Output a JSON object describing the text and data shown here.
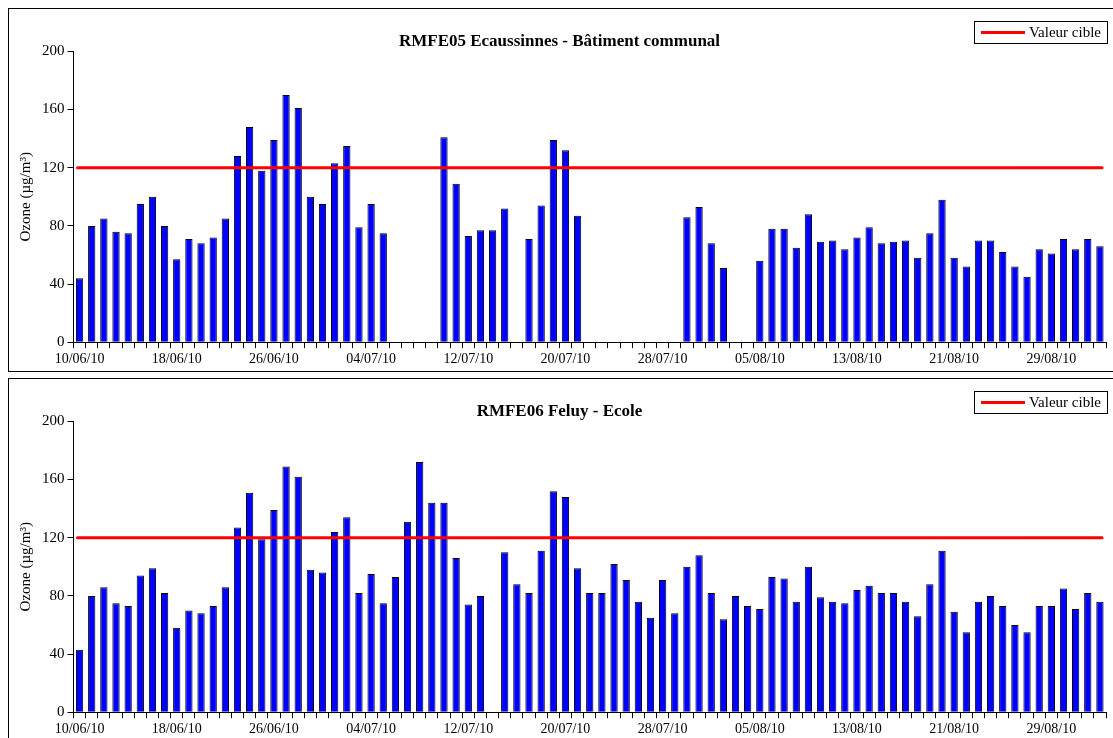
{
  "chart_data": [
    {
      "type": "bar",
      "title": "RMFE05 Ecaussinnes - Bâtiment communal",
      "ylabel": "Ozone (µg/m³)",
      "categories": [
        "10/06/10",
        null,
        null,
        null,
        null,
        null,
        null,
        null,
        "18/06/10",
        null,
        null,
        null,
        null,
        null,
        null,
        null,
        "26/06/10",
        null,
        null,
        null,
        null,
        null,
        null,
        null,
        "04/07/10",
        null,
        null,
        null,
        null,
        null,
        null,
        null,
        "12/07/10",
        null,
        null,
        null,
        null,
        null,
        null,
        null,
        "20/07/10",
        null,
        null,
        null,
        null,
        null,
        null,
        null,
        "28/07/10",
        null,
        null,
        null,
        null,
        null,
        null,
        null,
        "05/08/10",
        null,
        null,
        null,
        null,
        null,
        null,
        null,
        "13/08/10",
        null,
        null,
        null,
        null,
        null,
        null,
        null,
        "21/08/10",
        null,
        null,
        null,
        null,
        null,
        null,
        null,
        "29/08/10",
        null,
        null,
        null,
        null
      ],
      "series": [
        {
          "color": "#0000ff",
          "values": [
            44,
            80,
            85,
            76,
            75,
            95,
            100,
            80,
            57,
            71,
            68,
            72,
            85,
            128,
            148,
            118,
            139,
            170,
            161,
            100,
            95,
            123,
            135,
            79,
            95,
            75,
            null,
            null,
            null,
            null,
            141,
            109,
            73,
            77,
            77,
            92,
            null,
            71,
            94,
            139,
            132,
            87,
            null,
            null,
            null,
            null,
            null,
            null,
            null,
            null,
            86,
            93,
            68,
            51,
            null,
            null,
            56,
            78,
            78,
            65,
            88,
            69,
            70,
            64,
            72,
            79,
            68,
            69,
            70,
            58,
            75,
            98,
            58,
            52,
            70,
            70,
            62,
            52,
            45,
            64,
            61,
            71,
            64,
            71,
            66
          ]
        }
      ],
      "ylim": [
        0,
        200
      ],
      "yticks": [
        0,
        40,
        80,
        120,
        160,
        200
      ],
      "grid": false,
      "legend": "top right",
      "ref_lines": [
        {
          "axis": "y",
          "value": 120,
          "label": "Valeur cible",
          "color": "#ff0000"
        }
      ]
    },
    {
      "type": "bar",
      "title": "RMFE06 Feluy - Ecole",
      "ylabel": "Ozone (µg/m³)",
      "categories": [
        "10/06/10",
        null,
        null,
        null,
        null,
        null,
        null,
        null,
        "18/06/10",
        null,
        null,
        null,
        null,
        null,
        null,
        null,
        "26/06/10",
        null,
        null,
        null,
        null,
        null,
        null,
        null,
        "04/07/10",
        null,
        null,
        null,
        null,
        null,
        null,
        null,
        "12/07/10",
        null,
        null,
        null,
        null,
        null,
        null,
        null,
        "20/07/10",
        null,
        null,
        null,
        null,
        null,
        null,
        null,
        "28/07/10",
        null,
        null,
        null,
        null,
        null,
        null,
        null,
        "05/08/10",
        null,
        null,
        null,
        null,
        null,
        null,
        null,
        "13/08/10",
        null,
        null,
        null,
        null,
        null,
        null,
        null,
        "21/08/10",
        null,
        null,
        null,
        null,
        null,
        null,
        null,
        "29/08/10",
        null,
        null,
        null,
        null
      ],
      "series": [
        {
          "color": "#0000ff",
          "values": [
            43,
            80,
            86,
            75,
            73,
            94,
            99,
            82,
            58,
            70,
            68,
            73,
            86,
            127,
            151,
            119,
            139,
            169,
            162,
            98,
            96,
            124,
            134,
            82,
            95,
            75,
            93,
            131,
            172,
            144,
            144,
            106,
            74,
            80,
            null,
            110,
            88,
            82,
            111,
            152,
            148,
            99,
            82,
            82,
            102,
            91,
            76,
            65,
            91,
            68,
            100,
            108,
            82,
            64,
            80,
            73,
            71,
            93,
            92,
            76,
            100,
            79,
            76,
            75,
            84,
            87,
            82,
            82,
            76,
            66,
            88,
            111,
            69,
            55,
            76,
            80,
            73,
            60,
            55,
            73,
            73,
            85,
            71,
            82,
            76
          ]
        }
      ],
      "ylim": [
        0,
        200
      ],
      "yticks": [
        0,
        40,
        80,
        120,
        160,
        200
      ],
      "grid": false,
      "legend": "top right",
      "ref_lines": [
        {
          "axis": "y",
          "value": 120,
          "label": "Valeur cible",
          "color": "#ff0000"
        }
      ]
    }
  ]
}
